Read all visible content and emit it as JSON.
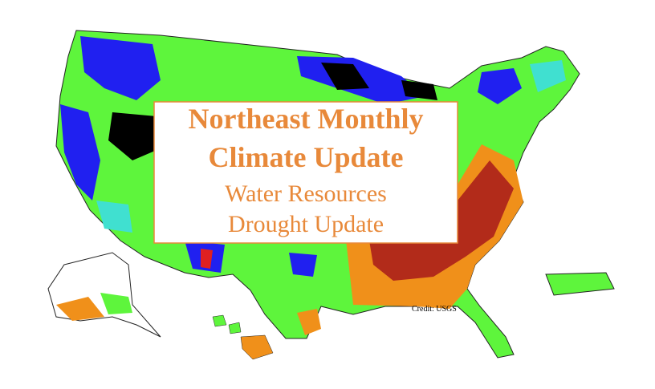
{
  "title": {
    "lines": [
      "Northeast Monthly",
      "Climate Update"
    ]
  },
  "subtitle": {
    "lines": [
      "Water Resources",
      "Drought Update"
    ]
  },
  "credit": "Credit: USGS"
}
